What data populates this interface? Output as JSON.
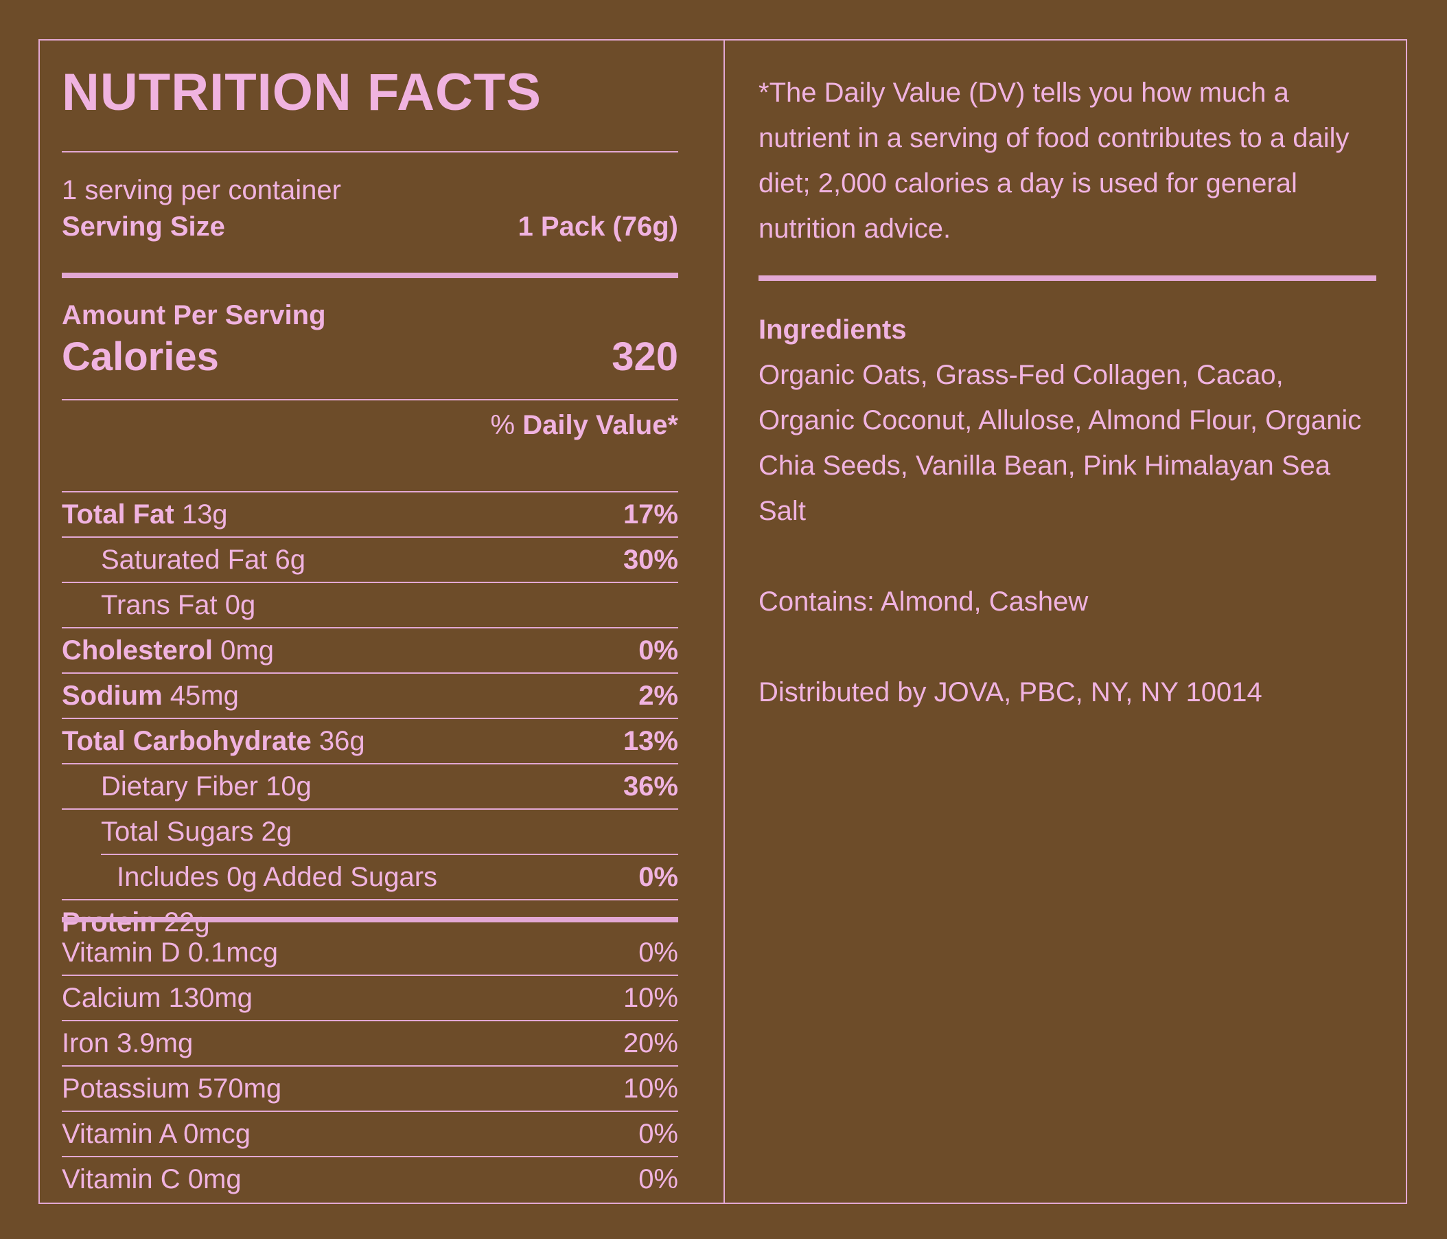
{
  "colors": {
    "background": "#6d4c29",
    "text": "#f0b3e0",
    "rule": "#e3a8d4"
  },
  "label": {
    "title": "NUTRITION FACTS",
    "servings_per_container": "1 serving per container",
    "serving_size_label": "Serving Size",
    "serving_size_value": "1 Pack (76g)",
    "amount_per_serving": "Amount Per Serving",
    "calories_label": "Calories",
    "calories_value": "320",
    "dv_prefix": "% ",
    "dv_header": "Daily Value*"
  },
  "nutrients": [
    {
      "name": "Total Fat",
      "amount": " 13g",
      "dv": "17%",
      "bold": true
    },
    {
      "name": "Saturated Fat",
      "amount": " 6g",
      "dv": "30%",
      "bold": false
    },
    {
      "name": "Trans Fat",
      "amount": " 0g",
      "dv": "",
      "bold": false
    },
    {
      "name": "Cholesterol",
      "amount": " 0mg",
      "dv": "0%",
      "bold": true
    },
    {
      "name": "Sodium",
      "amount": " 45mg",
      "dv": "2%",
      "bold": true
    },
    {
      "name": "Total Carbohydrate",
      "amount": " 36g",
      "dv": "13%",
      "bold": true
    },
    {
      "name": "Dietary Fiber",
      "amount": " 10g",
      "dv": "36%",
      "bold": false
    },
    {
      "name": "Total Sugars",
      "amount": " 2g",
      "dv": "",
      "bold": false
    },
    {
      "name": "Includes 0g Added Sugars",
      "amount": "",
      "dv": "0%",
      "bold": false
    },
    {
      "name": "Protein",
      "amount": " 22g",
      "dv": "",
      "bold": true
    }
  ],
  "vitamins": [
    {
      "name": "Vitamin D 0.1mcg",
      "dv": "0%"
    },
    {
      "name": "Calcium 130mg",
      "dv": "10%"
    },
    {
      "name": "Iron 3.9mg",
      "dv": "20%"
    },
    {
      "name": "Potassium 570mg",
      "dv": "10%"
    },
    {
      "name": "Vitamin A 0mcg",
      "dv": "0%"
    },
    {
      "name": "Vitamin C 0mg",
      "dv": "0%"
    }
  ],
  "info": {
    "dv_footnote": "*The Daily Value (DV) tells you how much a nutrient in a serving of food contributes to a daily diet; 2,000 calories a day is used for general nutrition advice.",
    "ingredients_heading": "Ingredients",
    "ingredients_text": "Organic Oats, Grass-Fed Collagen, Cacao, Organic Coconut, Allulose, Almond Flour, Organic Chia Seeds, Vanilla Bean, Pink Himalayan Sea Salt",
    "contains": "Contains: Almond, Cashew",
    "distributed": "Distributed by JOVA, PBC, NY, NY 10014"
  }
}
